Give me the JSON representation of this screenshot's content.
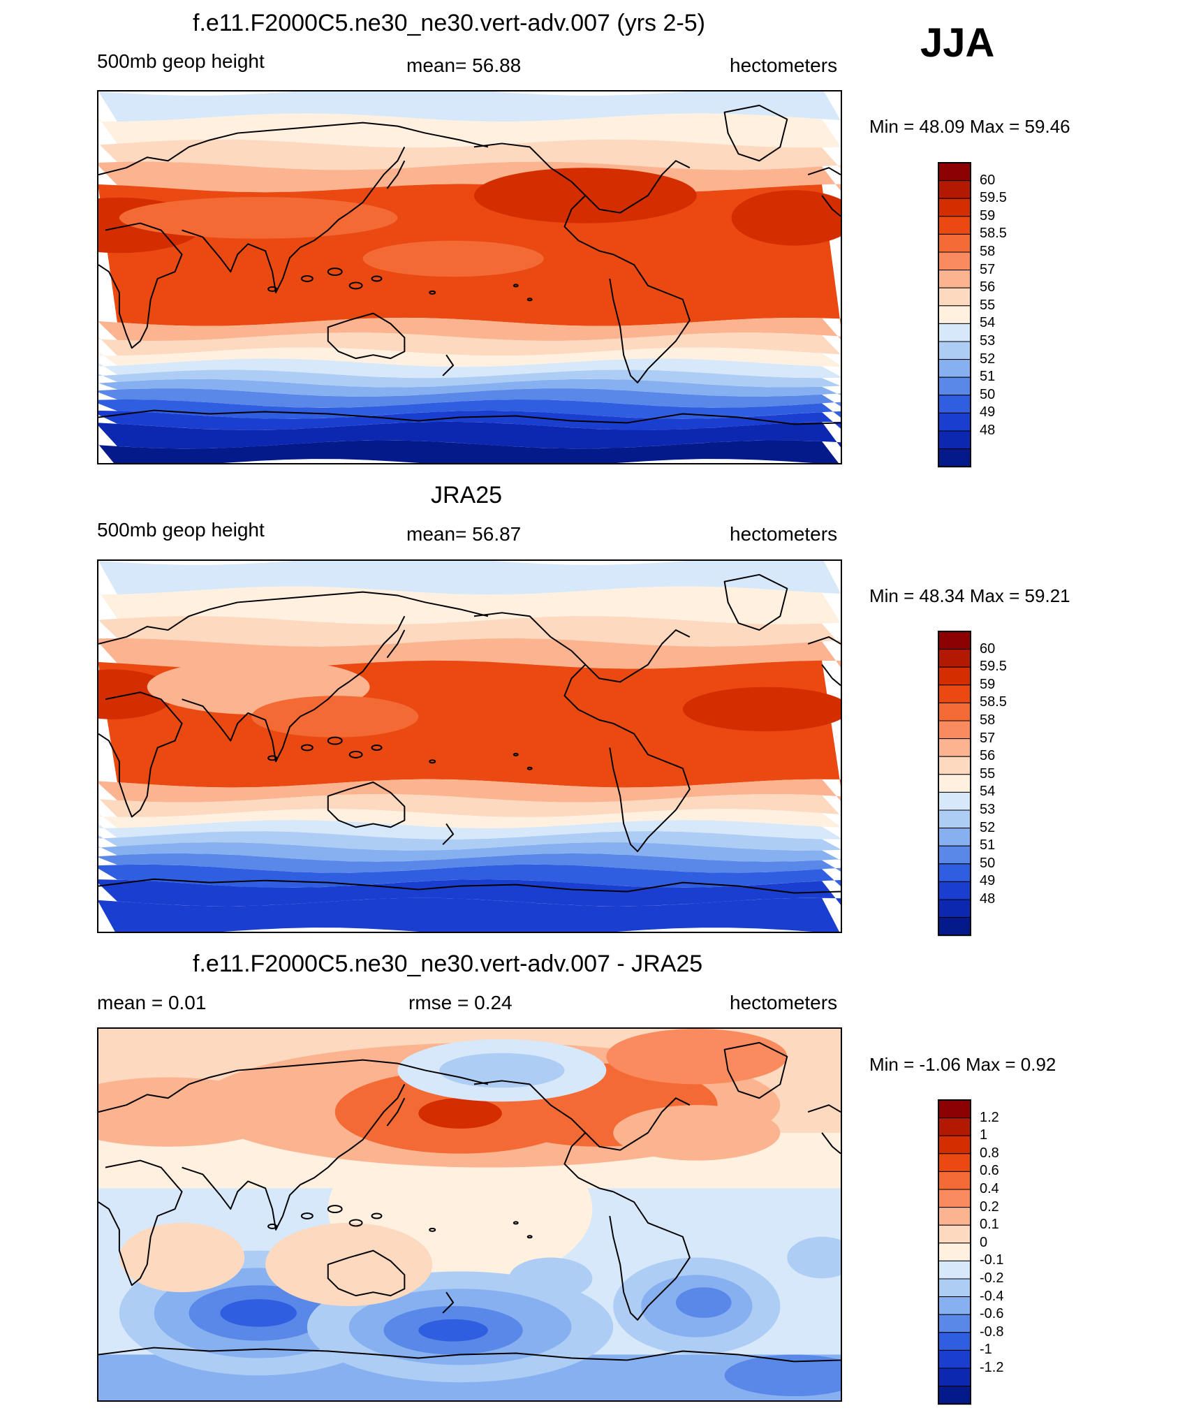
{
  "season": "JJA",
  "panels": [
    {
      "title": "f.e11.F2000C5.ne30_ne30.vert-adv.007 (yrs 2-5)",
      "left_label": "500mb geop height",
      "center_label": "mean=  56.88",
      "right_label": "hectometers",
      "minmax": "Min =  48.09 Max =  59.46",
      "kind": "abs",
      "colorbar": {
        "labels": [
          "60",
          "59.5",
          "59",
          "58.5",
          "58",
          "57",
          "56",
          "55",
          "54",
          "53",
          "52",
          "51",
          "50",
          "49",
          "48"
        ],
        "colors": [
          "#8b0000",
          "#b31900",
          "#d42e00",
          "#ea4a12",
          "#f46a35",
          "#fa8b5e",
          "#fcb38f",
          "#fdd9c0",
          "#fff0e0",
          "#d6e8fa",
          "#aecdf5",
          "#86b0f0",
          "#5a88e8",
          "#2f5fe0",
          "#1a3fd0",
          "#0c28b0",
          "#051a8a"
        ]
      },
      "chart_data": {
        "type": "heatmap",
        "title": "f.e11.F2000C5.ne30_ne30.vert-adv.007 (yrs 2-5)",
        "variable": "500mb geop height",
        "units": "hectometers",
        "mean": 56.88,
        "min": 48.09,
        "max": 59.46,
        "levels": [
          48,
          49,
          50,
          51,
          52,
          53,
          54,
          55,
          56,
          57,
          58,
          58.5,
          59,
          59.5,
          60
        ]
      }
    },
    {
      "title": "JRA25",
      "left_label": "500mb geop height",
      "center_label": "mean=  56.87",
      "right_label": "hectometers",
      "minmax": "Min =  48.34 Max =  59.21",
      "kind": "abs",
      "colorbar": {
        "labels": [
          "60",
          "59.5",
          "59",
          "58.5",
          "58",
          "57",
          "56",
          "55",
          "54",
          "53",
          "52",
          "51",
          "50",
          "49",
          "48"
        ],
        "colors": [
          "#8b0000",
          "#b31900",
          "#d42e00",
          "#ea4a12",
          "#f46a35",
          "#fa8b5e",
          "#fcb38f",
          "#fdd9c0",
          "#fff0e0",
          "#d6e8fa",
          "#aecdf5",
          "#86b0f0",
          "#5a88e8",
          "#2f5fe0",
          "#1a3fd0",
          "#0c28b0",
          "#051a8a"
        ]
      },
      "chart_data": {
        "type": "heatmap",
        "title": "JRA25",
        "variable": "500mb geop height",
        "units": "hectometers",
        "mean": 56.87,
        "min": 48.34,
        "max": 59.21,
        "levels": [
          48,
          49,
          50,
          51,
          52,
          53,
          54,
          55,
          56,
          57,
          58,
          58.5,
          59,
          59.5,
          60
        ]
      }
    },
    {
      "title": "f.e11.F2000C5.ne30_ne30.vert-adv.007 - JRA25",
      "left_label": "mean =   0.01",
      "center_label": "rmse =   0.24",
      "right_label": "hectometers",
      "minmax": "Min =  -1.06 Max =   0.92",
      "kind": "diff",
      "colorbar": {
        "labels": [
          "1.2",
          "1",
          "0.8",
          "0.6",
          "0.4",
          "0.2",
          "0.1",
          "0",
          "-0.1",
          "-0.2",
          "-0.4",
          "-0.6",
          "-0.8",
          "-1",
          "-1.2"
        ],
        "colors": [
          "#8b0000",
          "#b31900",
          "#d42e00",
          "#ea4a12",
          "#f46a35",
          "#fa8b5e",
          "#fcb38f",
          "#fdd9c0",
          "#fff0e0",
          "#d6e8fa",
          "#aecdf5",
          "#86b0f0",
          "#5a88e8",
          "#2f5fe0",
          "#1a3fd0",
          "#0c28b0",
          "#051a8a"
        ]
      },
      "chart_data": {
        "type": "heatmap",
        "title": "f.e11.F2000C5.ne30_ne30.vert-adv.007 - JRA25",
        "units": "hectometers",
        "mean": 0.01,
        "rmse": 0.24,
        "min": -1.06,
        "max": 0.92,
        "levels": [
          -1.2,
          -1,
          -0.8,
          -0.6,
          -0.4,
          -0.2,
          -0.1,
          0,
          0.1,
          0.2,
          0.4,
          0.6,
          0.8,
          1,
          1.2
        ]
      }
    }
  ]
}
